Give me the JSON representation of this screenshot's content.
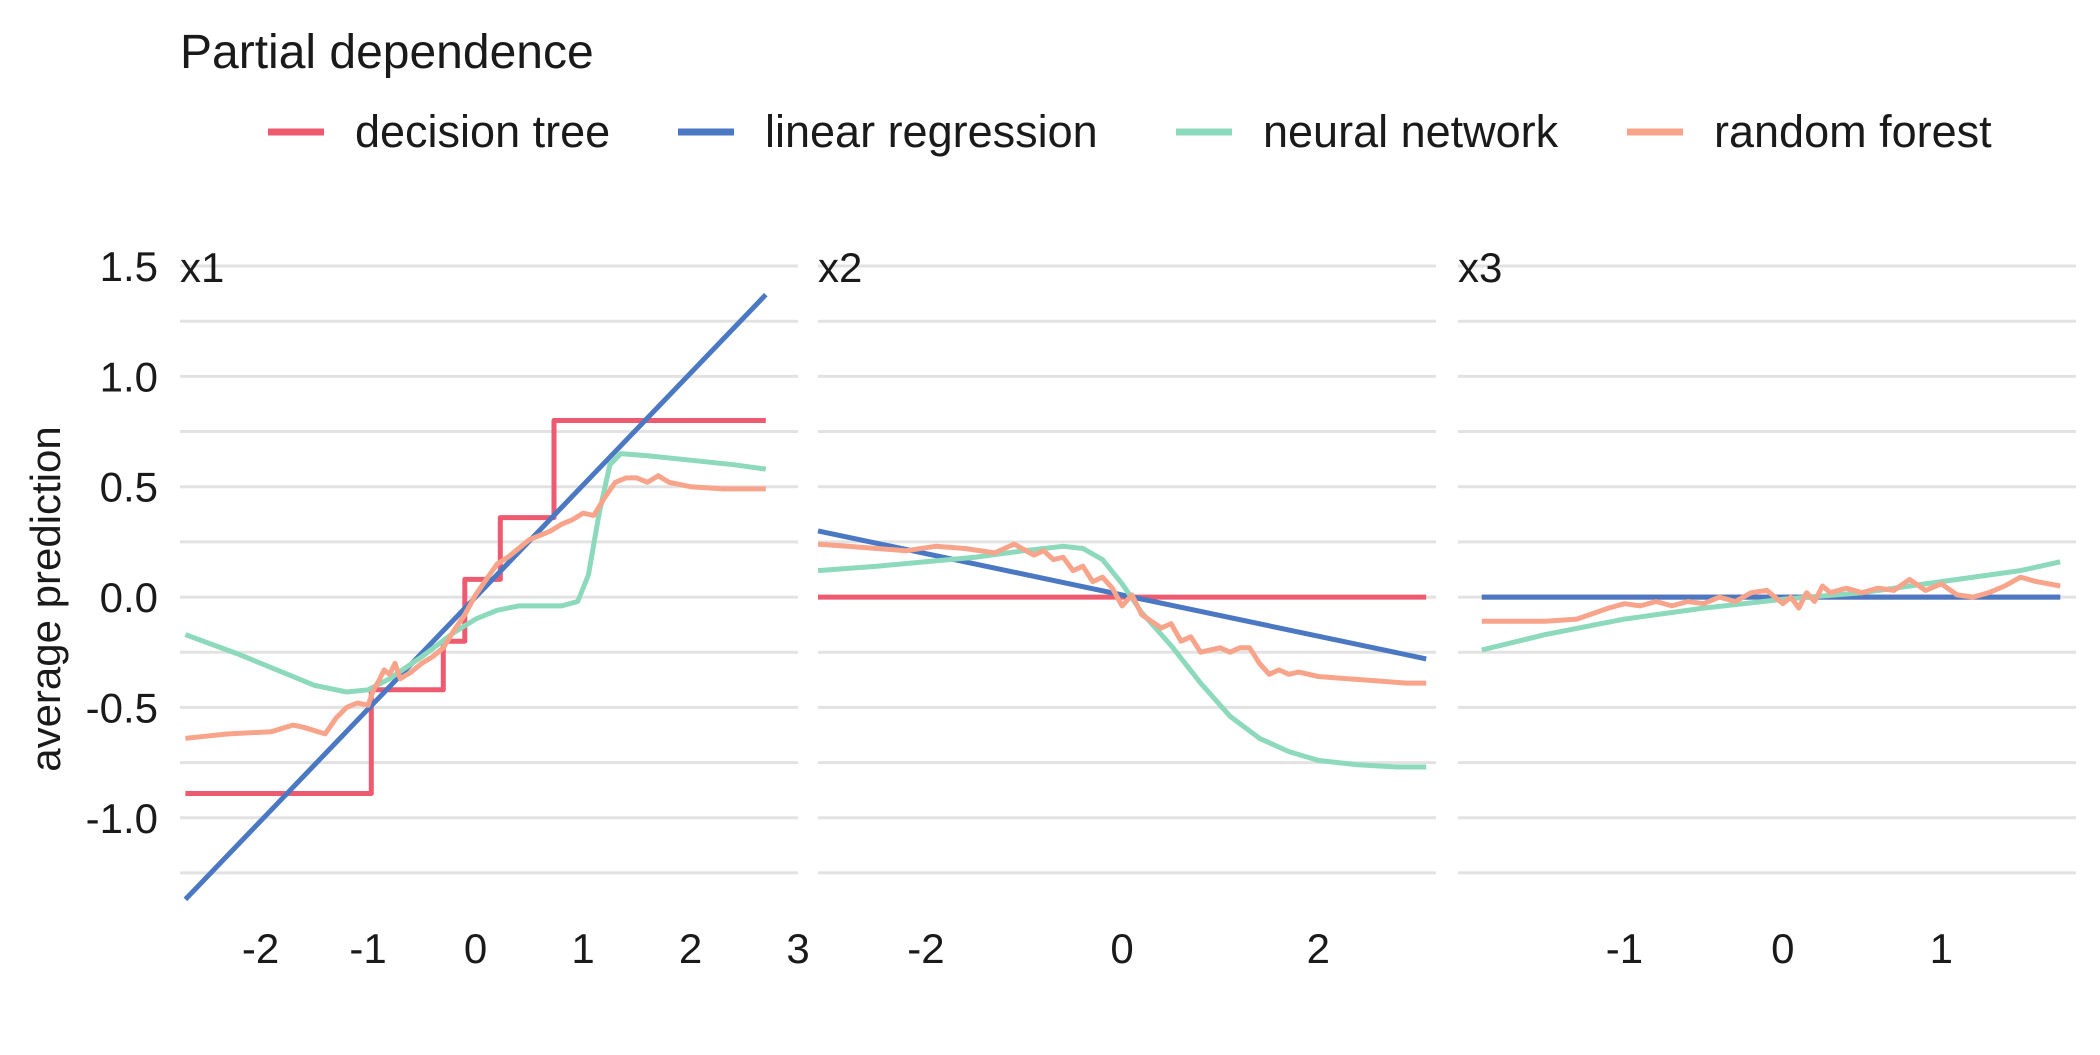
{
  "title": "Partial dependence",
  "ylabel": "average prediction",
  "legend": {
    "placement": "top",
    "entries": [
      {
        "label": "decision tree",
        "color": "#ee5a6f"
      },
      {
        "label": "linear regression",
        "color": "#4a78c2"
      },
      {
        "label": "neural network",
        "color": "#8cd9bc"
      },
      {
        "label": "random forest",
        "color": "#f8a48b"
      }
    ]
  },
  "colors": {
    "decision tree": "#ee5a6f",
    "linear regression": "#4a78c2",
    "neural network": "#8cd9bc",
    "random forest": "#f8a48b",
    "grid": "#e2e2e2"
  },
  "chart_data": {
    "type": "line",
    "title": "Partial dependence",
    "ylabel": "average prediction",
    "ylim": [
      -1.35,
      1.55
    ],
    "yticks": [
      1.5,
      1.0,
      0.5,
      0.0,
      -0.5,
      -1.0
    ],
    "ytick_labels": [
      "1.5",
      "1.0",
      "0.5",
      "0.0",
      "-0.5",
      "-1.0"
    ],
    "grid": true,
    "legend_position": "top",
    "panels": [
      {
        "label": "x1",
        "xlim": [
          -2.75,
          3.0
        ],
        "xticks": [
          -2,
          -1,
          0,
          1,
          2,
          3
        ],
        "xtick_labels": [
          "-2",
          "-1",
          "0",
          "1",
          "2",
          "3"
        ],
        "series": [
          {
            "name": "decision tree",
            "x": [
              -2.7,
              -0.97,
              -0.97,
              -0.3,
              -0.3,
              -0.1,
              -0.1,
              0.23,
              0.23,
              0.73,
              0.73,
              2.7
            ],
            "y": [
              -0.89,
              -0.89,
              -0.42,
              -0.42,
              -0.2,
              -0.2,
              0.08,
              0.08,
              0.36,
              0.36,
              0.8,
              0.8
            ]
          },
          {
            "name": "linear regression",
            "x": [
              -2.7,
              2.7
            ],
            "y": [
              -1.37,
              1.37
            ]
          },
          {
            "name": "neural network",
            "x": [
              -2.7,
              -2.2,
              -1.8,
              -1.5,
              -1.2,
              -1.0,
              -0.8,
              -0.5,
              -0.2,
              0.0,
              0.2,
              0.4,
              0.6,
              0.8,
              0.95,
              1.05,
              1.15,
              1.25,
              1.35,
              1.6,
              2.0,
              2.4,
              2.7
            ],
            "y": [
              -0.17,
              -0.26,
              -0.34,
              -0.4,
              -0.43,
              -0.42,
              -0.37,
              -0.27,
              -0.16,
              -0.1,
              -0.06,
              -0.04,
              -0.04,
              -0.04,
              -0.02,
              0.1,
              0.38,
              0.6,
              0.65,
              0.64,
              0.62,
              0.6,
              0.58
            ]
          },
          {
            "name": "random forest",
            "x": [
              -2.7,
              -2.3,
              -1.9,
              -1.7,
              -1.6,
              -1.4,
              -1.3,
              -1.2,
              -1.1,
              -1.0,
              -0.95,
              -0.9,
              -0.85,
              -0.8,
              -0.75,
              -0.7,
              -0.6,
              -0.5,
              -0.4,
              -0.3,
              -0.2,
              -0.1,
              0.0,
              0.1,
              0.2,
              0.3,
              0.4,
              0.5,
              0.6,
              0.7,
              0.8,
              0.9,
              1.0,
              1.1,
              1.2,
              1.3,
              1.4,
              1.5,
              1.6,
              1.7,
              1.8,
              2.0,
              2.3,
              2.7
            ],
            "y": [
              -0.64,
              -0.62,
              -0.61,
              -0.58,
              -0.59,
              -0.62,
              -0.55,
              -0.5,
              -0.48,
              -0.49,
              -0.42,
              -0.38,
              -0.33,
              -0.35,
              -0.3,
              -0.37,
              -0.34,
              -0.3,
              -0.27,
              -0.23,
              -0.15,
              -0.08,
              0.01,
              0.08,
              0.15,
              0.18,
              0.22,
              0.26,
              0.28,
              0.3,
              0.33,
              0.35,
              0.38,
              0.37,
              0.45,
              0.52,
              0.54,
              0.54,
              0.52,
              0.55,
              0.52,
              0.5,
              0.49,
              0.49
            ]
          }
        ]
      },
      {
        "label": "x2",
        "xlim": [
          -3.1,
          3.2
        ],
        "xticks": [
          -2,
          0,
          2
        ],
        "xtick_labels": [
          "-2",
          "0",
          "2"
        ],
        "series": [
          {
            "name": "decision tree",
            "x": [
              -3.1,
              3.1
            ],
            "y": [
              0.0,
              0.0
            ]
          },
          {
            "name": "linear regression",
            "x": [
              -3.1,
              3.1
            ],
            "y": [
              0.3,
              -0.28
            ]
          },
          {
            "name": "neural network",
            "x": [
              -3.1,
              -2.5,
              -2.0,
              -1.5,
              -1.0,
              -0.6,
              -0.4,
              -0.2,
              0.0,
              0.2,
              0.5,
              0.8,
              1.1,
              1.4,
              1.7,
              2.0,
              2.4,
              2.8,
              3.1
            ],
            "y": [
              0.12,
              0.14,
              0.16,
              0.18,
              0.21,
              0.23,
              0.22,
              0.17,
              0.06,
              -0.07,
              -0.22,
              -0.39,
              -0.54,
              -0.64,
              -0.7,
              -0.74,
              -0.76,
              -0.77,
              -0.77
            ]
          },
          {
            "name": "random forest",
            "x": [
              -3.1,
              -2.8,
              -2.5,
              -2.2,
              -1.9,
              -1.6,
              -1.3,
              -1.1,
              -0.9,
              -0.8,
              -0.7,
              -0.6,
              -0.5,
              -0.4,
              -0.3,
              -0.2,
              -0.1,
              0.0,
              0.1,
              0.2,
              0.3,
              0.4,
              0.5,
              0.6,
              0.7,
              0.8,
              0.9,
              1.0,
              1.1,
              1.2,
              1.3,
              1.4,
              1.5,
              1.6,
              1.7,
              1.8,
              2.0,
              2.3,
              2.6,
              2.9,
              3.1
            ],
            "y": [
              0.24,
              0.23,
              0.22,
              0.21,
              0.23,
              0.22,
              0.2,
              0.24,
              0.19,
              0.21,
              0.17,
              0.18,
              0.12,
              0.14,
              0.07,
              0.09,
              0.04,
              -0.04,
              0.01,
              -0.08,
              -0.11,
              -0.14,
              -0.12,
              -0.2,
              -0.18,
              -0.25,
              -0.24,
              -0.23,
              -0.25,
              -0.23,
              -0.23,
              -0.3,
              -0.35,
              -0.33,
              -0.35,
              -0.34,
              -0.36,
              -0.37,
              -0.38,
              -0.39,
              -0.39
            ]
          }
        ]
      },
      {
        "label": "x3",
        "xlim": [
          -2.05,
          1.85
        ],
        "xticks": [
          -1,
          0,
          1
        ],
        "xtick_labels": [
          "-1",
          "0",
          "1"
        ],
        "series": [
          {
            "name": "decision tree",
            "x": [
              -1.9,
              1.75
            ],
            "y": [
              0.0,
              0.0
            ]
          },
          {
            "name": "linear regression",
            "x": [
              -1.9,
              1.75
            ],
            "y": [
              0.0,
              0.0
            ]
          },
          {
            "name": "neural network",
            "x": [
              -1.9,
              -1.5,
              -1.0,
              -0.5,
              0.0,
              0.5,
              1.0,
              1.5,
              1.75
            ],
            "y": [
              -0.24,
              -0.17,
              -0.1,
              -0.05,
              -0.01,
              0.02,
              0.07,
              0.12,
              0.16
            ]
          },
          {
            "name": "random forest",
            "x": [
              -1.9,
              -1.5,
              -1.3,
              -1.1,
              -1.0,
              -0.9,
              -0.8,
              -0.7,
              -0.6,
              -0.5,
              -0.4,
              -0.3,
              -0.2,
              -0.1,
              0.0,
              0.05,
              0.1,
              0.15,
              0.2,
              0.25,
              0.3,
              0.4,
              0.5,
              0.6,
              0.7,
              0.8,
              0.9,
              1.0,
              1.1,
              1.2,
              1.3,
              1.4,
              1.5,
              1.6,
              1.75
            ],
            "y": [
              -0.11,
              -0.11,
              -0.1,
              -0.05,
              -0.03,
              -0.04,
              -0.02,
              -0.04,
              -0.02,
              -0.03,
              0.0,
              -0.02,
              0.02,
              0.03,
              -0.03,
              0.0,
              -0.05,
              0.02,
              -0.02,
              0.05,
              0.02,
              0.04,
              0.02,
              0.04,
              0.03,
              0.08,
              0.03,
              0.06,
              0.01,
              0.0,
              0.02,
              0.05,
              0.09,
              0.07,
              0.05
            ]
          }
        ]
      }
    ]
  }
}
